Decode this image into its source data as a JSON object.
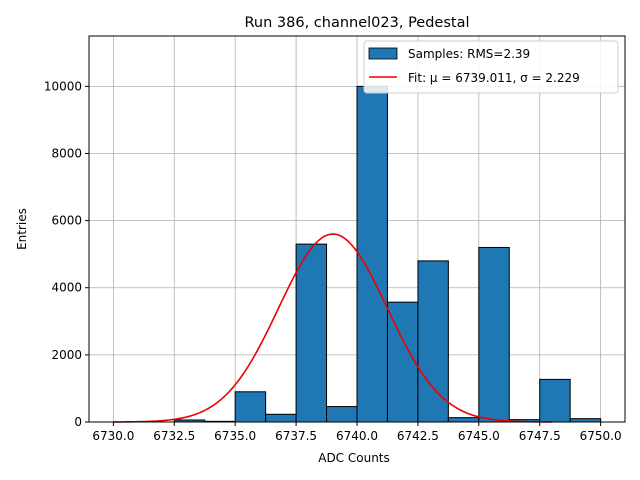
{
  "chart_data": {
    "type": "bar",
    "title": "Run 386, channel023, Pedestal",
    "xlabel": "ADC Counts",
    "ylabel": "Entries",
    "xlim": [
      6729,
      6751
    ],
    "ylim": [
      0,
      11500
    ],
    "xticks": [
      6730,
      6732.5,
      6735,
      6737.5,
      6740,
      6742.5,
      6745,
      6747.5,
      6750
    ],
    "xtick_labels": [
      "6730.0",
      "6732.5",
      "6735.0",
      "6737.5",
      "6740.0",
      "6742.5",
      "6745.0",
      "6747.5",
      "6750.0"
    ],
    "yticks": [
      0,
      2000,
      4000,
      6000,
      8000,
      10000
    ],
    "ytick_labels": [
      "0",
      "2000",
      "4000",
      "6000",
      "8000",
      "10000"
    ],
    "grid": true,
    "legend_position": "top-right",
    "bin_width": 1.25,
    "bins": [
      {
        "left": 6732.5,
        "value": 60
      },
      {
        "left": 6733.75,
        "value": 20
      },
      {
        "left": 6735.0,
        "value": 900
      },
      {
        "left": 6736.25,
        "value": 230
      },
      {
        "left": 6737.5,
        "value": 5300
      },
      {
        "left": 6738.75,
        "value": 460
      },
      {
        "left": 6740.0,
        "value": 10000
      },
      {
        "left": 6741.25,
        "value": 3570
      },
      {
        "left": 6742.5,
        "value": 4800
      },
      {
        "left": 6743.75,
        "value": 130
      },
      {
        "left": 6745.0,
        "value": 5200
      },
      {
        "left": 6746.25,
        "value": 70
      },
      {
        "left": 6747.5,
        "value": 1270
      },
      {
        "left": 6748.75,
        "value": 100
      }
    ],
    "series": [
      {
        "name": "Samples: RMS=2.39",
        "kind": "histogram",
        "color": "#1f77b4"
      },
      {
        "name": "Fit: μ = 6739.011, σ = 2.229",
        "kind": "gaussian",
        "mu": 6739.011,
        "sigma": 2.229,
        "amplitude": 5600,
        "x_range": [
          6730,
          6748
        ],
        "color": "#ee0000"
      }
    ]
  }
}
